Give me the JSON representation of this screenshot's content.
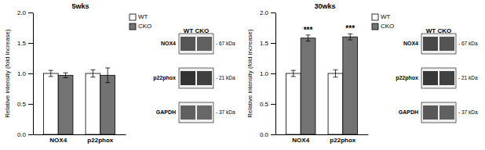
{
  "chart_data": [
    {
      "type": "bar",
      "title": "5wks",
      "categories": [
        "NOX4",
        "p22phox"
      ],
      "series": [
        {
          "name": "WT",
          "color": "#ffffff",
          "values": [
            1.0,
            1.0
          ],
          "errors": [
            0.05,
            0.06
          ]
        },
        {
          "name": "CKO",
          "color": "#737373",
          "values": [
            0.97,
            0.97
          ],
          "errors": [
            0.04,
            0.12
          ]
        }
      ],
      "ylim": [
        0,
        2.0
      ],
      "yticks": [
        {
          "value": 0.0,
          "label": "0.0"
        },
        {
          "value": 0.5,
          "label": "0.5"
        },
        {
          "value": 1.0,
          "label": "1.0"
        },
        {
          "value": 1.5,
          "label": "1.5"
        },
        {
          "value": 2.0,
          "label": "2.0"
        }
      ],
      "ylabel": "Relative intensity (fold increase)",
      "legend": "upper right",
      "blot": {
        "header": "WT CKO",
        "labels": [
          "NOX4",
          "p22phox",
          "GAPDH"
        ],
        "kda": [
          "- 67 kDa",
          "- 21 kDa",
          "- 37 kDa"
        ],
        "band_colors": [
          [
            "#555555",
            "#606060"
          ],
          [
            "#333333",
            "#404040"
          ],
          [
            "#606060",
            "#686868"
          ]
        ]
      }
    },
    {
      "type": "bar",
      "title": "30wks",
      "categories": [
        "NOX4",
        "p22phox"
      ],
      "series": [
        {
          "name": "WT",
          "color": "#ffffff",
          "values": [
            1.0,
            1.0
          ],
          "errors": [
            0.05,
            0.06
          ]
        },
        {
          "name": "CKO",
          "color": "#737373",
          "values": [
            1.58,
            1.6
          ],
          "errors": [
            0.05,
            0.05
          ],
          "annotations": [
            "***",
            "***"
          ]
        }
      ],
      "ylim": [
        0,
        2.0
      ],
      "yticks": [
        {
          "value": 0.0,
          "label": "0.0"
        },
        {
          "value": 0.5,
          "label": "0.5"
        },
        {
          "value": 1.0,
          "label": "1.0"
        },
        {
          "value": 1.5,
          "label": "1.5"
        },
        {
          "value": 2.0,
          "label": "2.0"
        }
      ],
      "ylabel": "Relative intensity (fold increase)",
      "legend": "upper right",
      "blot": {
        "header": "WT CKO",
        "labels": [
          "NOX4",
          "p22phox",
          "GAPDH"
        ],
        "kda": [
          "- 67 kDa",
          "- 21 kDa",
          "- 37 kDa"
        ],
        "band_colors": [
          [
            "#484848",
            "#545454"
          ],
          [
            "#383838",
            "#424242"
          ],
          [
            "#585858",
            "#606060"
          ]
        ]
      }
    }
  ]
}
